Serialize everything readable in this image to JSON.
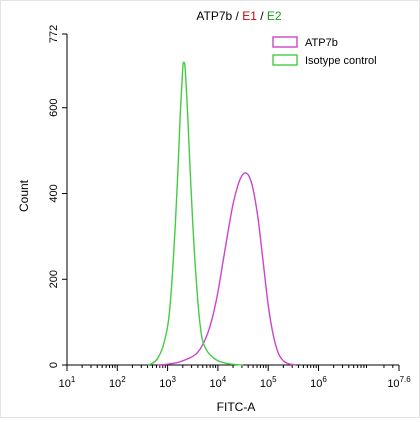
{
  "chart_data": {
    "type": "line",
    "title_parts": [
      {
        "text": "ATP7b",
        "color": "#000000"
      },
      {
        "text": " / ",
        "color": "#000000"
      },
      {
        "text": "E1",
        "color": "#d00000"
      },
      {
        "text": " / ",
        "color": "#000000"
      },
      {
        "text": "E2",
        "color": "#1a9a1a"
      }
    ],
    "xlabel": "FITC-A",
    "ylabel": "Count",
    "x_scale": "log",
    "xlim_exp": [
      1,
      7.6
    ],
    "ylim": [
      0,
      772
    ],
    "y_ticks": [
      0,
      200,
      400,
      600,
      772
    ],
    "x_ticks": [
      {
        "exp": 1,
        "label": "10",
        "sup": "1"
      },
      {
        "exp": 2,
        "label": "10",
        "sup": "2"
      },
      {
        "exp": 3,
        "label": "10",
        "sup": "3"
      },
      {
        "exp": 4,
        "label": "10",
        "sup": "4"
      },
      {
        "exp": 5,
        "label": "10",
        "sup": "5"
      },
      {
        "exp": 6,
        "label": "10",
        "sup": "6"
      },
      {
        "exp": 7.6,
        "label": "10",
        "sup": "7.6"
      }
    ],
    "legend_position": "top-right",
    "series": [
      {
        "name": "ATP7b",
        "color": "#cc44cc",
        "points": [
          [
            2.8,
            0
          ],
          [
            3.0,
            2
          ],
          [
            3.2,
            6
          ],
          [
            3.35,
            12
          ],
          [
            3.5,
            20
          ],
          [
            3.6,
            30
          ],
          [
            3.7,
            48
          ],
          [
            3.8,
            75
          ],
          [
            3.9,
            115
          ],
          [
            4.0,
            170
          ],
          [
            4.1,
            240
          ],
          [
            4.2,
            310
          ],
          [
            4.3,
            375
          ],
          [
            4.4,
            420
          ],
          [
            4.48,
            442
          ],
          [
            4.55,
            448
          ],
          [
            4.62,
            440
          ],
          [
            4.7,
            410
          ],
          [
            4.8,
            340
          ],
          [
            4.9,
            240
          ],
          [
            5.0,
            140
          ],
          [
            5.1,
            70
          ],
          [
            5.2,
            28
          ],
          [
            5.3,
            10
          ],
          [
            5.4,
            3
          ],
          [
            5.55,
            0
          ]
        ]
      },
      {
        "name": "Isotype control",
        "color": "#44cc44",
        "points": [
          [
            2.6,
            0
          ],
          [
            2.7,
            4
          ],
          [
            2.8,
            15
          ],
          [
            2.9,
            40
          ],
          [
            3.0,
            90
          ],
          [
            3.05,
            140
          ],
          [
            3.1,
            220
          ],
          [
            3.15,
            320
          ],
          [
            3.2,
            440
          ],
          [
            3.25,
            580
          ],
          [
            3.3,
            690
          ],
          [
            3.32,
            705
          ],
          [
            3.35,
            690
          ],
          [
            3.4,
            580
          ],
          [
            3.45,
            450
          ],
          [
            3.5,
            330
          ],
          [
            3.55,
            230
          ],
          [
            3.6,
            150
          ],
          [
            3.65,
            90
          ],
          [
            3.7,
            55
          ],
          [
            3.8,
            30
          ],
          [
            3.9,
            18
          ],
          [
            4.0,
            10
          ],
          [
            4.1,
            6
          ],
          [
            4.2,
            3
          ],
          [
            4.35,
            1
          ],
          [
            4.5,
            0
          ]
        ]
      }
    ]
  }
}
